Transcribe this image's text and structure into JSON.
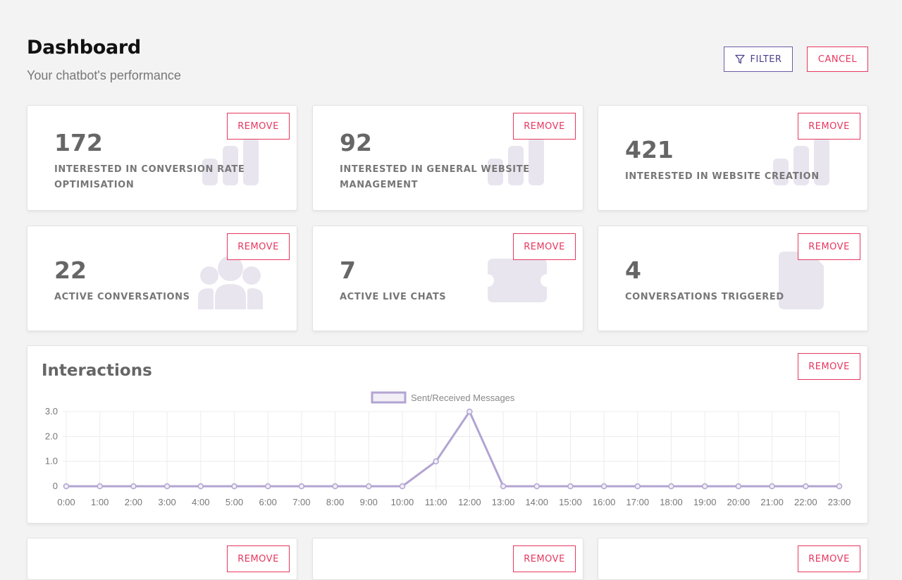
{
  "header": {
    "title": "Dashboard",
    "subtitle": "Your chatbot's performance",
    "filter_label": "FILTER",
    "cancel_label": "CANCEL"
  },
  "remove_label": "REMOVE",
  "stats": [
    {
      "value": "172",
      "label": "INTERESTED IN CONVERSION RATE OPTIMISATION",
      "icon": "bar-chart-icon"
    },
    {
      "value": "92",
      "label": "INTERESTED IN GENERAL WEBSITE MANAGEMENT",
      "icon": "bar-chart-icon"
    },
    {
      "value": "421",
      "label": "INTERESTED IN WEBSITE CREATION",
      "icon": "bar-chart-icon"
    },
    {
      "value": "22",
      "label": "ACTIVE CONVERSATIONS",
      "icon": "users-icon"
    },
    {
      "value": "7",
      "label": "ACTIVE LIVE CHATS",
      "icon": "ticket-icon"
    },
    {
      "value": "4",
      "label": "CONVERSATIONS TRIGGERED",
      "icon": "file-icon"
    }
  ],
  "interactions": {
    "title": "Interactions"
  },
  "colors": {
    "accent": "#e6385f",
    "filter": "#6c5ba8",
    "line": "#b3a4d3",
    "icon_fill": "#e8e5ef"
  },
  "chart_data": {
    "type": "line",
    "legend_position": "top-center",
    "grid": true,
    "x": [
      "0:00",
      "1:00",
      "2:00",
      "3:00",
      "4:00",
      "5:00",
      "6:00",
      "7:00",
      "8:00",
      "9:00",
      "10:00",
      "11:00",
      "12:00",
      "13:00",
      "14:00",
      "15:00",
      "16:00",
      "17:00",
      "18:00",
      "19:00",
      "20:00",
      "21:00",
      "22:00",
      "23:00"
    ],
    "series": [
      {
        "name": "Sent/Received Messages",
        "values": [
          0,
          0,
          0,
          0,
          0,
          0,
          0,
          0,
          0,
          0,
          0,
          1,
          3,
          0,
          0,
          0,
          0,
          0,
          0,
          0,
          0,
          0,
          0,
          0
        ]
      }
    ],
    "ylim": [
      0,
      3
    ],
    "yticks": [
      "0",
      "1.0",
      "2.0",
      "3.0"
    ]
  }
}
